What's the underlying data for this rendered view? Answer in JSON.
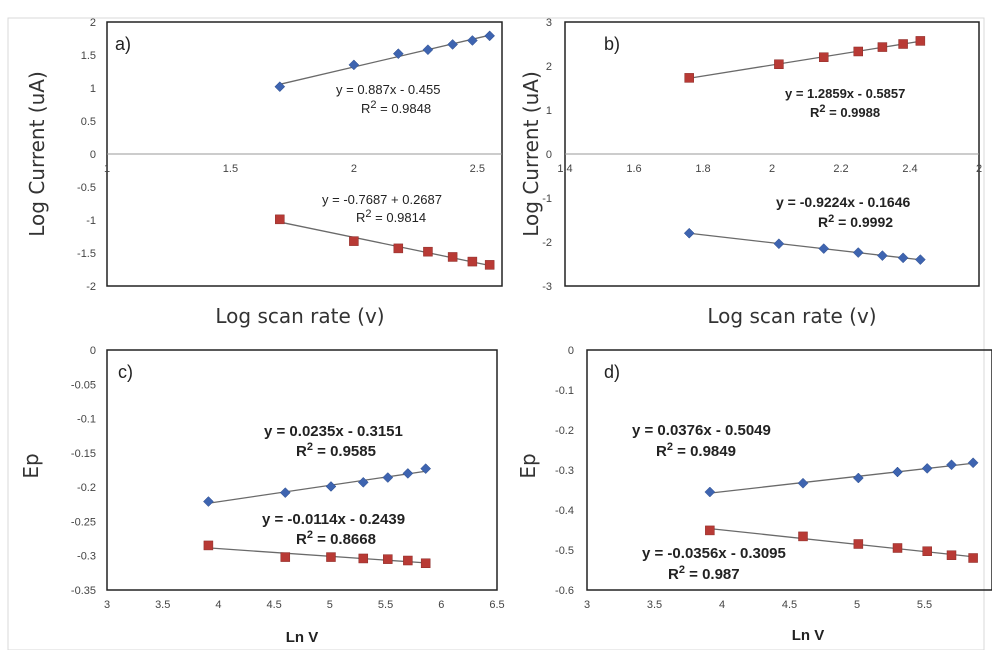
{
  "chart_data": [
    {
      "type": "scatter",
      "panel": "a)",
      "xlabel": "Log scan rate (v)",
      "ylabel": "Log Current (uA)",
      "xlim": [
        1,
        2.6
      ],
      "ylim": [
        -2,
        2
      ],
      "xticks": [
        "1",
        "1.5",
        "2",
        "2.5"
      ],
      "yticks": [
        "-2",
        "-1.5",
        "-1",
        "-0.5",
        "0",
        "0.5",
        "1",
        "1.5",
        "2"
      ],
      "series": [
        {
          "color": "#3e64b0",
          "marker": "diamond",
          "x": [
            1.7,
            2.0,
            2.18,
            2.3,
            2.4,
            2.48,
            2.55
          ],
          "y": [
            1.02,
            1.35,
            1.52,
            1.58,
            1.66,
            1.72,
            1.79
          ],
          "equation": "y = 0.887x - 0.455",
          "r2_label": "R",
          "r2_sup": "2",
          "r2_value": "= 0.9848"
        },
        {
          "color": "#b83a35",
          "marker": "square",
          "x": [
            1.7,
            2.0,
            2.18,
            2.3,
            2.4,
            2.48,
            2.55
          ],
          "y": [
            -0.99,
            -1.32,
            -1.43,
            -1.48,
            -1.56,
            -1.63,
            -1.68
          ],
          "equation": "y = -0.7687 + 0.2687",
          "r2_label": "R",
          "r2_sup": "2",
          "r2_value": "= 0.9814"
        }
      ]
    },
    {
      "type": "scatter",
      "panel": "b)",
      "xlabel": "Log scan rate (v)",
      "ylabel": "Log Current (uA)",
      "xlim": [
        1.4,
        2.6
      ],
      "ylim": [
        -3,
        3
      ],
      "xticks": [
        "1.4",
        "1.6",
        "1.8",
        "2",
        "2.2",
        "2.4",
        "2"
      ],
      "yticks": [
        "-3",
        "-2",
        "-1",
        "0",
        "1",
        "2",
        "3"
      ],
      "series": [
        {
          "color": "#b83a35",
          "marker": "square",
          "x": [
            1.76,
            2.02,
            2.15,
            2.25,
            2.32,
            2.38,
            2.43
          ],
          "y": [
            1.73,
            2.04,
            2.2,
            2.33,
            2.43,
            2.5,
            2.57
          ],
          "equation": "y = 1.2859x - 0.5857",
          "r2_label": "R",
          "r2_sup": "2",
          "r2_value": "= 0.9988"
        },
        {
          "color": "#3e64b0",
          "marker": "diamond",
          "x": [
            1.76,
            2.02,
            2.15,
            2.25,
            2.32,
            2.38,
            2.43
          ],
          "y": [
            -1.8,
            -2.04,
            -2.15,
            -2.24,
            -2.31,
            -2.36,
            -2.4
          ],
          "equation": "y = -0.9224x - 0.1646",
          "r2_label": "R",
          "r2_sup": "2",
          "r2_value": "= 0.9992"
        }
      ]
    },
    {
      "type": "scatter",
      "panel": "c)",
      "xlabel": "Ln V",
      "ylabel": "Ep",
      "xlim": [
        3,
        6.5
      ],
      "ylim": [
        -0.35,
        0
      ],
      "xticks": [
        "3",
        "3.5",
        "4",
        "4.5",
        "5",
        "5.5",
        "6",
        "6.5"
      ],
      "yticks": [
        "-0.35",
        "-0.3",
        "-0.25",
        "-0.2",
        "-0.15",
        "-0.1",
        "-0.05",
        "0"
      ],
      "series": [
        {
          "color": "#3e64b0",
          "marker": "diamond",
          "x": [
            3.91,
            4.6,
            5.01,
            5.3,
            5.52,
            5.7,
            5.86
          ],
          "y": [
            -0.221,
            -0.208,
            -0.199,
            -0.193,
            -0.186,
            -0.18,
            -0.173
          ],
          "equation": "y = 0.0235x - 0.3151",
          "r2_label": "R",
          "r2_sup": "2",
          "r2_value": "= 0.9585"
        },
        {
          "color": "#b83a35",
          "marker": "square",
          "x": [
            3.91,
            4.6,
            5.01,
            5.3,
            5.52,
            5.7,
            5.86
          ],
          "y": [
            -0.285,
            -0.302,
            -0.302,
            -0.304,
            -0.305,
            -0.307,
            -0.311
          ],
          "equation": "y = -0.0114x - 0.2439",
          "r2_label": "R",
          "r2_sup": "2",
          "r2_value": "= 0.8668"
        }
      ]
    },
    {
      "type": "scatter",
      "panel": "d)",
      "xlabel": "Ln V",
      "ylabel": "Ep",
      "xlim": [
        3,
        6
      ],
      "ylim": [
        -0.6,
        0
      ],
      "xticks": [
        "3",
        "3.5",
        "4",
        "4.5",
        "5",
        "5.5"
      ],
      "yticks": [
        "-0.6",
        "-0.5",
        "-0.4",
        "-0.3",
        "-0.2",
        "-0.1",
        "0"
      ],
      "series": [
        {
          "color": "#3e64b0",
          "marker": "diamond",
          "x": [
            3.91,
            4.6,
            5.01,
            5.3,
            5.52,
            5.7,
            5.86
          ],
          "y": [
            -0.355,
            -0.333,
            -0.32,
            -0.305,
            -0.296,
            -0.287,
            -0.282
          ],
          "equation": "y = 0.0376x - 0.5049",
          "r2_label": "R",
          "r2_sup": "2",
          "r2_value": "= 0.9849"
        },
        {
          "color": "#b83a35",
          "marker": "square",
          "x": [
            3.91,
            4.6,
            5.01,
            5.3,
            5.52,
            5.7,
            5.86
          ],
          "y": [
            -0.451,
            -0.466,
            -0.485,
            -0.495,
            -0.503,
            -0.513,
            -0.52
          ],
          "equation": "y = -0.0356x - 0.3095",
          "r2_label": "R",
          "r2_sup": "2",
          "r2_value": "= 0.987"
        }
      ]
    }
  ]
}
